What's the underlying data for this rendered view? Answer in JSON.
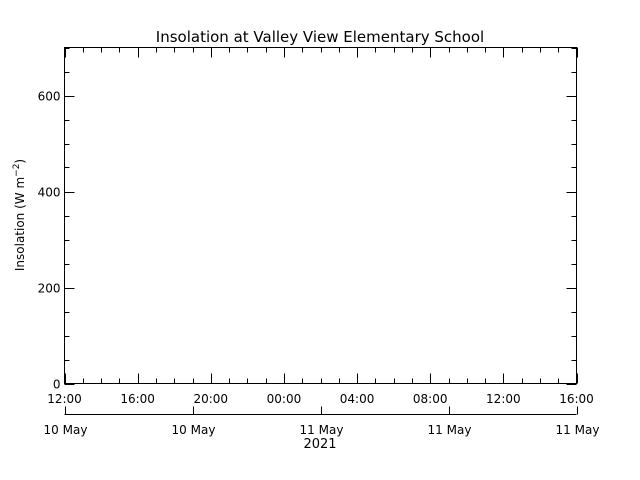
{
  "chart_data": {
    "type": "line",
    "title": "Insolation at Valley View Elementary School",
    "ylabel": "Insolation (W m",
    "ylabel_sup": "−2",
    "ylabel_end": ")",
    "ylim": [
      0,
      700
    ],
    "yticks": [
      0,
      200,
      400,
      600
    ],
    "y_minor_step": 50,
    "x_ticks": [
      "12:00",
      "16:00",
      "20:00",
      "00:00",
      "04:00",
      "08:00",
      "12:00",
      "16:00"
    ],
    "x_minor_per_major": 4,
    "date_labels": [
      "10 May",
      "10 May",
      "11 May",
      "11 May",
      "11 May"
    ],
    "date_tick_indices": [
      0,
      2,
      4,
      6,
      8
    ],
    "year_label": "2021",
    "series": [],
    "grid": false,
    "colors": {
      "axes": "#000000",
      "background": "#ffffff"
    }
  }
}
